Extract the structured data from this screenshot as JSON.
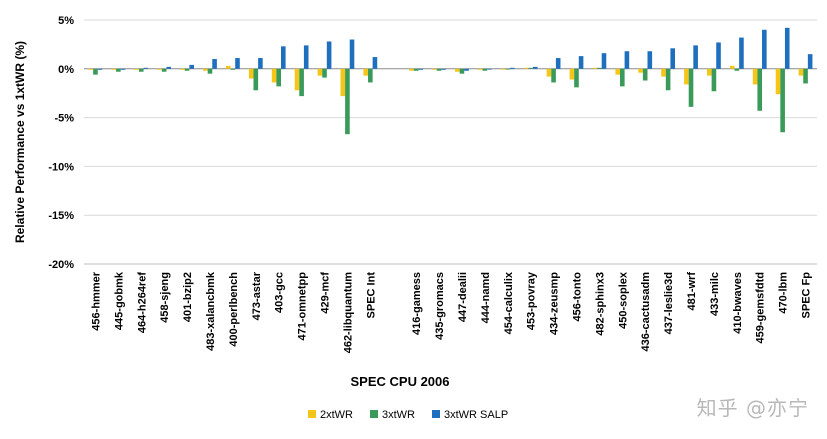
{
  "chart_data": {
    "type": "bar",
    "xlabel": "SPEC CPU 2006",
    "ylabel": "Relative Performance vs 1xtWR  (%)",
    "ylim": [
      -20,
      5
    ],
    "yticks": [
      "5%",
      "0%",
      "-5%",
      "-10%",
      "-15%",
      "-20%"
    ],
    "ytick_values": [
      5,
      0,
      -5,
      -10,
      -15,
      -20
    ],
    "grid": true,
    "legend_position": "bottom-center",
    "categories": [
      "456-hmmer",
      "445-gobmk",
      "464-h264ref",
      "458-sjeng",
      "401-bzip2",
      "483-xalancbmk",
      "400-perlbench",
      "473-astar",
      "403-gcc",
      "471-omnetpp",
      "429-mcf",
      "462-libquantum",
      "SPEC Int",
      "",
      "416-gamess",
      "435-gromacs",
      "447-dealii",
      "444-namd",
      "454-calculix",
      "453-povray",
      "434-zeusmp",
      "456-tonto",
      "482-sphinx3",
      "450-soplex",
      "436-cactusadm",
      "437-leslie3d",
      "481-wrf",
      "433-milc",
      "410-bwaves",
      "459-gemsfdtd",
      "470-lbm",
      "SPEC Fp"
    ],
    "series": [
      {
        "name": "2xtWR",
        "color": "#f5c518",
        "values": [
          -0.1,
          -0.1,
          -0.1,
          -0.1,
          -0.1,
          -0.2,
          0.3,
          -1.0,
          -1.4,
          -2.2,
          -0.7,
          -2.8,
          -0.7,
          null,
          -0.2,
          -0.1,
          -0.3,
          -0.1,
          0.0,
          0.1,
          -0.8,
          -1.1,
          0.1,
          -0.6,
          -0.4,
          -0.8,
          -1.6,
          -0.7,
          0.3,
          -1.6,
          -2.6,
          -0.7
        ]
      },
      {
        "name": "3xtWR",
        "color": "#3a9a5a",
        "values": [
          -0.6,
          -0.3,
          -0.3,
          -0.3,
          -0.2,
          -0.5,
          -0.1,
          -2.2,
          -1.8,
          -2.8,
          -0.9,
          -6.7,
          -1.4,
          null,
          -0.2,
          -0.2,
          -0.5,
          -0.2,
          0.0,
          0.1,
          -1.4,
          -1.9,
          0.1,
          -1.8,
          -1.2,
          -2.2,
          -3.9,
          -2.3,
          -0.2,
          -4.3,
          -6.5,
          -1.5
        ]
      },
      {
        "name": "3xtWR SALP",
        "color": "#1f6fbf",
        "values": [
          -0.1,
          -0.1,
          0.1,
          0.2,
          0.4,
          1.0,
          1.1,
          1.1,
          2.3,
          2.4,
          2.8,
          3.0,
          1.2,
          null,
          -0.1,
          -0.1,
          -0.2,
          0.0,
          0.1,
          0.2,
          1.1,
          1.3,
          1.6,
          1.8,
          1.8,
          2.1,
          2.4,
          2.7,
          3.2,
          4.0,
          4.2,
          1.5
        ]
      }
    ]
  },
  "watermark": "知乎 @亦宁"
}
